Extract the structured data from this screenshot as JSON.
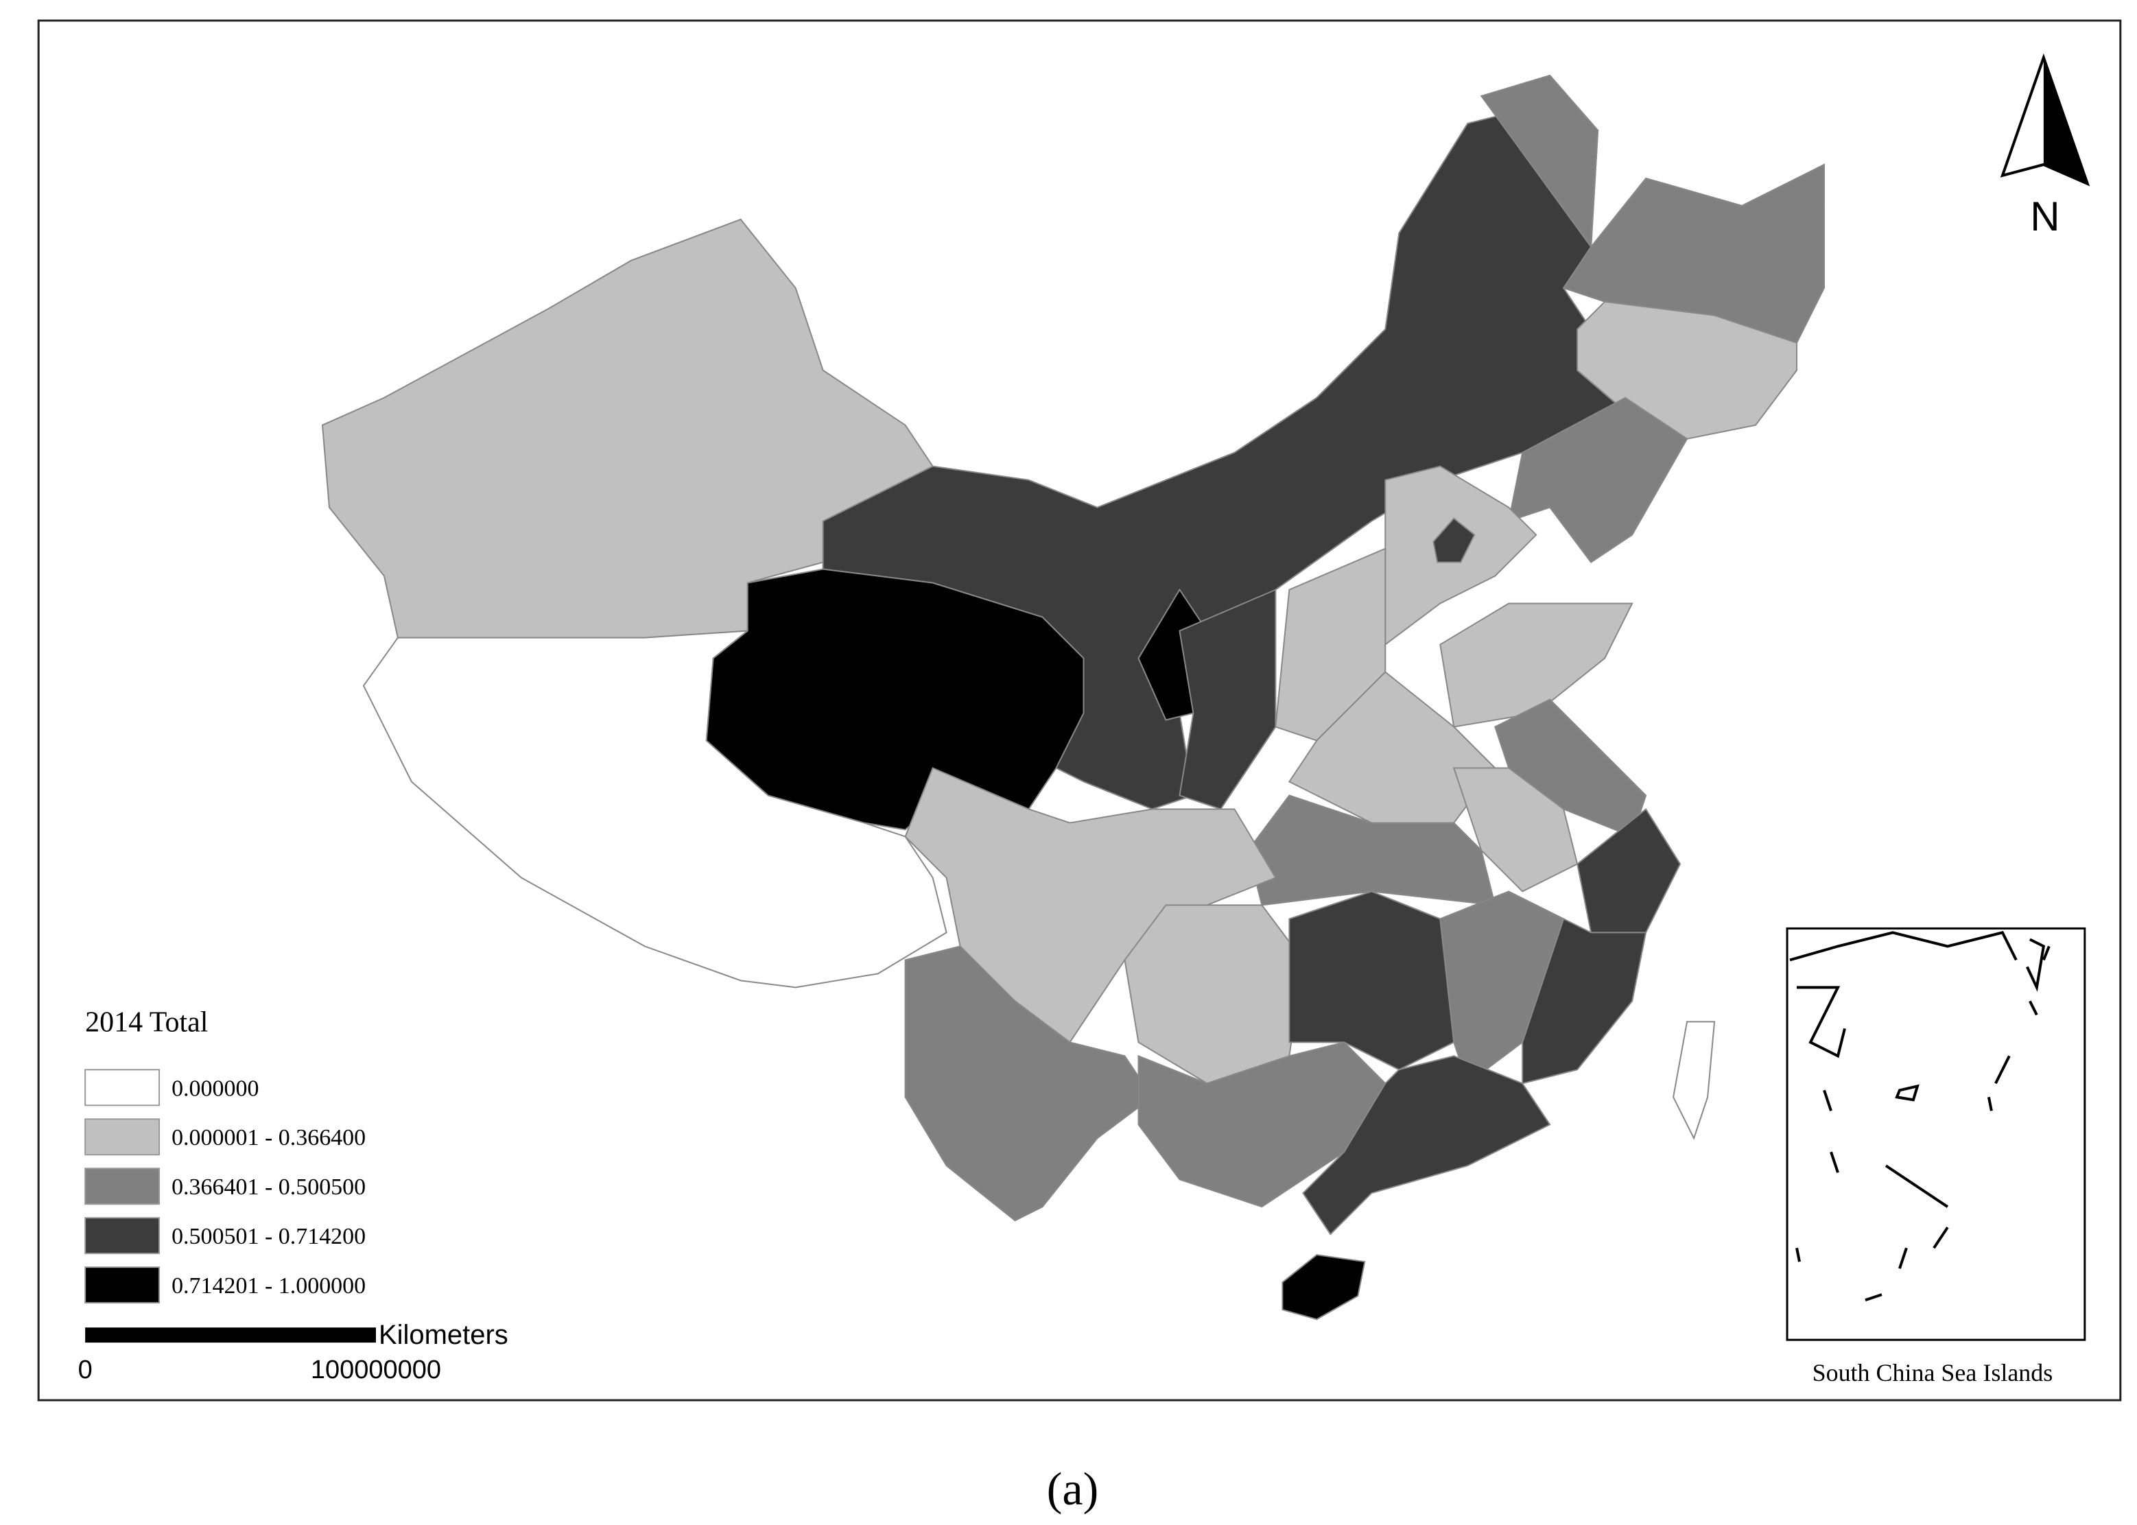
{
  "title": "2014 Total",
  "legend": [
    {
      "label": "0.000000",
      "color": "#ffffff"
    },
    {
      "label": "0.000001 - 0.366400",
      "color": "#c0c0c0"
    },
    {
      "label": "0.366401 - 0.500500",
      "color": "#808080"
    },
    {
      "label": "0.500501 - 0.714200",
      "color": "#3c3c3c"
    },
    {
      "label": "0.714201 - 1.000000",
      "color": "#000000"
    }
  ],
  "scale_bar": {
    "unit": "Kilometers",
    "labels": [
      "0",
      "100000000"
    ]
  },
  "north": "N",
  "inset_label": "South China Sea Islands",
  "caption": "(a)"
}
